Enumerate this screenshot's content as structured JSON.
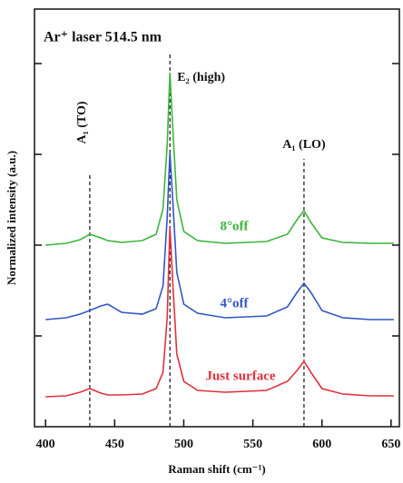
{
  "chart_data": {
    "type": "line",
    "title": "Ar⁺ laser 514.5 nm",
    "x_label": "Raman shift (cm⁻¹)",
    "y_label": "Normalized intensity (a.u.)",
    "x": [
      400,
      415,
      425,
      432,
      440,
      445,
      455,
      470,
      480,
      485,
      488,
      490,
      492,
      495,
      500,
      510,
      530,
      560,
      575,
      582,
      587,
      592,
      600,
      615,
      635,
      652
    ],
    "series": [
      {
        "name": "Just surface",
        "color": "#e2303c",
        "values": [
          0.33,
          0.34,
          0.38,
          0.42,
          0.37,
          0.35,
          0.35,
          0.36,
          0.42,
          0.6,
          1.2,
          2.2,
          1.6,
          0.8,
          0.5,
          0.4,
          0.38,
          0.4,
          0.5,
          0.62,
          0.72,
          0.6,
          0.42,
          0.36,
          0.34,
          0.34
        ]
      },
      {
        "name": "4°off",
        "color": "#3355c4",
        "values": [
          1.18,
          1.2,
          1.24,
          1.28,
          1.33,
          1.35,
          1.26,
          1.24,
          1.3,
          1.55,
          2.3,
          3.02,
          2.5,
          1.7,
          1.35,
          1.25,
          1.2,
          1.22,
          1.32,
          1.48,
          1.58,
          1.48,
          1.28,
          1.2,
          1.18,
          1.18
        ]
      },
      {
        "name": "8°off",
        "color": "#3cb43c",
        "values": [
          2.0,
          2.02,
          2.06,
          2.12,
          2.08,
          2.05,
          2.03,
          2.05,
          2.12,
          2.4,
          3.1,
          3.9,
          3.3,
          2.5,
          2.15,
          2.05,
          2.02,
          2.04,
          2.12,
          2.28,
          2.38,
          2.25,
          2.08,
          2.03,
          2.02,
          2.02
        ]
      }
    ],
    "annotations": [
      {
        "text": "A₁ (TO)",
        "x": 432
      },
      {
        "text": "E₂ (high)",
        "x": 490
      },
      {
        "text": "A₁ (LO)",
        "x": 587
      }
    ],
    "xlim": [
      392,
      656
    ],
    "xticks": [
      400,
      450,
      500,
      550,
      600,
      650
    ],
    "ylim": [
      0,
      4.6
    ],
    "yticks": [
      1,
      2,
      3,
      4
    ]
  }
}
